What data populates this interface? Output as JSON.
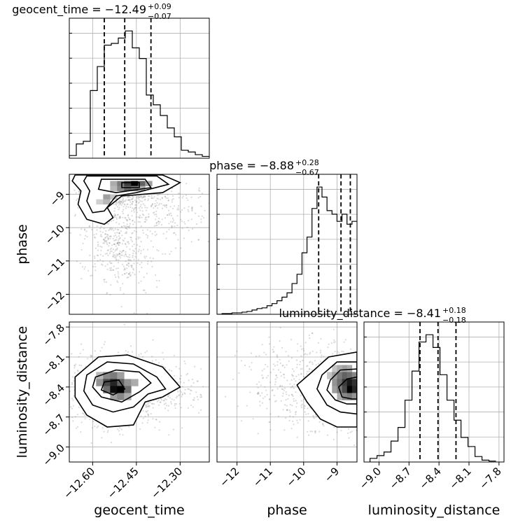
{
  "chart_data": {
    "type": "corner",
    "parameters": [
      {
        "key": "geocent_time",
        "axis_label": "geocent_time",
        "range": [
          -12.68,
          -12.2
        ],
        "ticks": [
          -12.6,
          -12.45,
          -12.3
        ],
        "tick_labels": [
          "−12.60",
          "−12.45",
          "−12.30"
        ],
        "title": {
          "text": "geocent_time = −12.49",
          "plus": "+0.09",
          "minus": "−0.07"
        },
        "quantiles": [
          -12.56,
          -12.49,
          -12.4
        ],
        "histogram": {
          "edges_start": -12.68,
          "bin_width": 0.024,
          "counts": [
            3,
            16,
            19,
            76,
            103,
            127,
            129,
            135,
            143,
            124,
            112,
            71,
            60,
            48,
            34,
            24,
            9,
            7,
            4,
            2
          ]
        }
      },
      {
        "key": "phase",
        "axis_label": "phase",
        "range": [
          -12.6,
          -8.4
        ],
        "ticks": [
          -12,
          -11,
          -10,
          -9
        ],
        "tick_labels": [
          "−12",
          "−11",
          "−10",
          "−9"
        ],
        "title": {
          "text": "phase = −8.88",
          "plus": "+0.28",
          "minus": "−0.67"
        },
        "quantiles": [
          -9.55,
          -8.88,
          -8.6
        ],
        "histogram": {
          "edges_start": -12.6,
          "bin_width": 0.15,
          "counts": [
            0,
            1,
            1,
            2,
            2,
            3,
            4,
            6,
            8,
            9,
            12,
            15,
            19,
            24,
            30,
            43,
            56,
            86,
            108,
            148,
            178,
            164,
            145,
            140,
            130,
            140,
            126,
            130
          ]
        }
      },
      {
        "key": "luminosity_distance",
        "axis_label": "luminosity_distance",
        "range": [
          -9.15,
          -7.75
        ],
        "ticks": [
          -9.0,
          -8.7,
          -8.4,
          -8.1,
          -7.8
        ],
        "tick_labels": [
          "−9.0",
          "−8.7",
          "−8.4",
          "−8.1",
          "−7.8"
        ],
        "title": {
          "text": "luminosity_distance = −8.41",
          "plus": "+0.18",
          "minus": "−0.18"
        },
        "quantiles": [
          -8.59,
          -8.41,
          -8.23
        ],
        "histogram": {
          "edges_start": -9.09,
          "bin_width": 0.07,
          "counts": [
            4,
            7,
            11,
            23,
            38,
            68,
            100,
            132,
            140,
            126,
            96,
            68,
            46,
            27,
            17,
            6,
            2,
            1
          ]
        }
      }
    ],
    "pairs": [
      {
        "x": "geocent_time",
        "y": "phase",
        "density_cells": [
          {
            "x": -12.54,
            "y": -8.75,
            "w": 0.024,
            "h": 0.15,
            "d": 0.3
          },
          {
            "x": -12.516,
            "y": -8.75,
            "w": 0.024,
            "h": 0.15,
            "d": 0.5
          },
          {
            "x": -12.492,
            "y": -8.75,
            "w": 0.024,
            "h": 0.15,
            "d": 0.75
          },
          {
            "x": -12.468,
            "y": -8.75,
            "w": 0.024,
            "h": 0.15,
            "d": 1.0
          },
          {
            "x": -12.444,
            "y": -8.75,
            "w": 0.024,
            "h": 0.15,
            "d": 0.6
          },
          {
            "x": -12.42,
            "y": -8.75,
            "w": 0.024,
            "h": 0.15,
            "d": 0.35
          },
          {
            "x": -12.54,
            "y": -8.9,
            "w": 0.024,
            "h": 0.15,
            "d": 0.25
          },
          {
            "x": -12.516,
            "y": -8.9,
            "w": 0.024,
            "h": 0.15,
            "d": 0.45
          },
          {
            "x": -12.492,
            "y": -8.9,
            "w": 0.024,
            "h": 0.15,
            "d": 0.6
          },
          {
            "x": -12.468,
            "y": -8.9,
            "w": 0.024,
            "h": 0.15,
            "d": 0.5
          },
          {
            "x": -12.444,
            "y": -8.9,
            "w": 0.024,
            "h": 0.15,
            "d": 0.3
          },
          {
            "x": -12.564,
            "y": -9.15,
            "w": 0.024,
            "h": 0.15,
            "d": 0.35
          },
          {
            "x": -12.54,
            "y": -9.15,
            "w": 0.024,
            "h": 0.15,
            "d": 0.2
          },
          {
            "x": -12.588,
            "y": -9.3,
            "w": 0.024,
            "h": 0.15,
            "d": 0.15
          },
          {
            "x": -12.564,
            "y": -9.3,
            "w": 0.024,
            "h": 0.15,
            "d": 0.25
          }
        ],
        "contours": [
          [
            [
              -12.66,
              -8.42
            ],
            [
              -12.36,
              -8.42
            ],
            [
              -12.3,
              -8.65
            ],
            [
              -12.36,
              -8.95
            ],
            [
              -12.5,
              -9.05
            ],
            [
              -12.55,
              -9.4
            ],
            [
              -12.53,
              -9.7
            ],
            [
              -12.56,
              -9.9
            ],
            [
              -12.62,
              -9.75
            ],
            [
              -12.65,
              -9.3
            ],
            [
              -12.64,
              -8.9
            ],
            [
              -12.67,
              -8.6
            ]
          ],
          [
            [
              -12.62,
              -8.45
            ],
            [
              -12.38,
              -8.45
            ],
            [
              -12.34,
              -8.7
            ],
            [
              -12.45,
              -8.95
            ],
            [
              -12.52,
              -9.05
            ],
            [
              -12.56,
              -9.5
            ],
            [
              -12.6,
              -9.55
            ],
            [
              -12.62,
              -9.2
            ],
            [
              -12.61,
              -8.9
            ],
            [
              -12.63,
              -8.6
            ]
          ],
          [
            [
              -12.57,
              -8.55
            ],
            [
              -12.42,
              -8.55
            ],
            [
              -12.4,
              -8.8
            ],
            [
              -12.52,
              -8.95
            ],
            [
              -12.58,
              -8.85
            ]
          ],
          [
            [
              -12.5,
              -8.65
            ],
            [
              -12.44,
              -8.65
            ],
            [
              -12.44,
              -8.8
            ],
            [
              -12.5,
              -8.8
            ]
          ]
        ]
      },
      {
        "x": "geocent_time",
        "y": "luminosity_distance",
        "density_cells": [
          {
            "x": -12.588,
            "y": -8.32,
            "w": 0.024,
            "h": 0.07,
            "d": 0.25
          },
          {
            "x": -12.564,
            "y": -8.32,
            "w": 0.024,
            "h": 0.07,
            "d": 0.45
          },
          {
            "x": -12.54,
            "y": -8.32,
            "w": 0.024,
            "h": 0.07,
            "d": 0.5
          },
          {
            "x": -12.516,
            "y": -8.32,
            "w": 0.024,
            "h": 0.07,
            "d": 0.35
          },
          {
            "x": -12.588,
            "y": -8.39,
            "w": 0.024,
            "h": 0.07,
            "d": 0.4
          },
          {
            "x": -12.564,
            "y": -8.39,
            "w": 0.024,
            "h": 0.07,
            "d": 0.7
          },
          {
            "x": -12.54,
            "y": -8.39,
            "w": 0.024,
            "h": 0.07,
            "d": 0.85
          },
          {
            "x": -12.516,
            "y": -8.39,
            "w": 0.024,
            "h": 0.07,
            "d": 0.6
          },
          {
            "x": -12.492,
            "y": -8.39,
            "w": 0.024,
            "h": 0.07,
            "d": 0.4
          },
          {
            "x": -12.564,
            "y": -8.46,
            "w": 0.024,
            "h": 0.07,
            "d": 0.55
          },
          {
            "x": -12.54,
            "y": -8.46,
            "w": 0.024,
            "h": 0.07,
            "d": 0.95
          },
          {
            "x": -12.516,
            "y": -8.46,
            "w": 0.024,
            "h": 0.07,
            "d": 1.0
          },
          {
            "x": -12.492,
            "y": -8.46,
            "w": 0.024,
            "h": 0.07,
            "d": 0.55
          },
          {
            "x": -12.468,
            "y": -8.39,
            "w": 0.024,
            "h": 0.07,
            "d": 0.3
          },
          {
            "x": -12.54,
            "y": -8.53,
            "w": 0.024,
            "h": 0.07,
            "d": 0.35
          },
          {
            "x": -12.516,
            "y": -8.53,
            "w": 0.024,
            "h": 0.07,
            "d": 0.45
          },
          {
            "x": -12.492,
            "y": -8.53,
            "w": 0.024,
            "h": 0.07,
            "d": 0.3
          }
        ],
        "contours": [
          [
            [
              -12.66,
              -8.3
            ],
            [
              -12.58,
              -8.1
            ],
            [
              -12.48,
              -8.08
            ],
            [
              -12.36,
              -8.2
            ],
            [
              -12.3,
              -8.4
            ],
            [
              -12.36,
              -8.5
            ],
            [
              -12.42,
              -8.55
            ],
            [
              -12.46,
              -8.78
            ],
            [
              -12.55,
              -8.8
            ],
            [
              -12.62,
              -8.68
            ],
            [
              -12.66,
              -8.5
            ]
          ],
          [
            [
              -12.62,
              -8.28
            ],
            [
              -12.55,
              -8.15
            ],
            [
              -12.46,
              -8.17
            ],
            [
              -12.38,
              -8.3
            ],
            [
              -12.35,
              -8.42
            ],
            [
              -12.41,
              -8.47
            ],
            [
              -12.46,
              -8.6
            ],
            [
              -12.53,
              -8.65
            ],
            [
              -12.6,
              -8.58
            ],
            [
              -12.63,
              -8.44
            ]
          ],
          [
            [
              -12.59,
              -8.3
            ],
            [
              -12.52,
              -8.23
            ],
            [
              -12.44,
              -8.25
            ],
            [
              -12.4,
              -8.36
            ],
            [
              -12.44,
              -8.45
            ],
            [
              -12.5,
              -8.55
            ],
            [
              -12.57,
              -8.5
            ],
            [
              -12.6,
              -8.4
            ]
          ],
          [
            [
              -12.56,
              -8.35
            ],
            [
              -12.51,
              -8.33
            ],
            [
              -12.49,
              -8.42
            ],
            [
              -12.53,
              -8.48
            ],
            [
              -12.57,
              -8.43
            ]
          ]
        ]
      },
      {
        "x": "phase",
        "y": "luminosity_distance",
        "density_cells": [
          {
            "x": -9.15,
            "y": -8.25,
            "w": 0.15,
            "h": 0.07,
            "d": 0.2
          },
          {
            "x": -9.0,
            "y": -8.25,
            "w": 0.15,
            "h": 0.07,
            "d": 0.3
          },
          {
            "x": -8.85,
            "y": -8.25,
            "w": 0.15,
            "h": 0.07,
            "d": 0.35
          },
          {
            "x": -8.7,
            "y": -8.25,
            "w": 0.15,
            "h": 0.07,
            "d": 0.3
          },
          {
            "x": -9.3,
            "y": -8.32,
            "w": 0.15,
            "h": 0.07,
            "d": 0.2
          },
          {
            "x": -9.15,
            "y": -8.32,
            "w": 0.15,
            "h": 0.07,
            "d": 0.35
          },
          {
            "x": -9.0,
            "y": -8.32,
            "w": 0.15,
            "h": 0.07,
            "d": 0.5
          },
          {
            "x": -8.85,
            "y": -8.32,
            "w": 0.15,
            "h": 0.07,
            "d": 0.6
          },
          {
            "x": -8.7,
            "y": -8.32,
            "w": 0.15,
            "h": 0.07,
            "d": 0.55
          },
          {
            "x": -8.55,
            "y": -8.32,
            "w": 0.15,
            "h": 0.07,
            "d": 0.45
          },
          {
            "x": -9.15,
            "y": -8.39,
            "w": 0.15,
            "h": 0.07,
            "d": 0.4
          },
          {
            "x": -9.0,
            "y": -8.39,
            "w": 0.15,
            "h": 0.07,
            "d": 0.55
          },
          {
            "x": -8.85,
            "y": -8.39,
            "w": 0.15,
            "h": 0.07,
            "d": 0.75
          },
          {
            "x": -8.7,
            "y": -8.39,
            "w": 0.15,
            "h": 0.07,
            "d": 0.9
          },
          {
            "x": -8.55,
            "y": -8.39,
            "w": 0.15,
            "h": 0.07,
            "d": 0.8
          },
          {
            "x": -9.15,
            "y": -8.46,
            "w": 0.15,
            "h": 0.07,
            "d": 0.35
          },
          {
            "x": -9.0,
            "y": -8.46,
            "w": 0.15,
            "h": 0.07,
            "d": 0.5
          },
          {
            "x": -8.85,
            "y": -8.46,
            "w": 0.15,
            "h": 0.07,
            "d": 0.7
          },
          {
            "x": -8.7,
            "y": -8.46,
            "w": 0.15,
            "h": 0.07,
            "d": 1.0
          },
          {
            "x": -8.55,
            "y": -8.46,
            "w": 0.15,
            "h": 0.07,
            "d": 0.85
          },
          {
            "x": -9.0,
            "y": -8.53,
            "w": 0.15,
            "h": 0.07,
            "d": 0.3
          },
          {
            "x": -8.85,
            "y": -8.53,
            "w": 0.15,
            "h": 0.07,
            "d": 0.45
          },
          {
            "x": -8.7,
            "y": -8.53,
            "w": 0.15,
            "h": 0.07,
            "d": 0.5
          },
          {
            "x": -8.55,
            "y": -8.53,
            "w": 0.15,
            "h": 0.07,
            "d": 0.4
          }
        ],
        "contours": [
          [
            [
              -8.4,
              -8.05
            ],
            [
              -9.25,
              -8.1
            ],
            [
              -9.75,
              -8.25
            ],
            [
              -10.2,
              -8.38
            ],
            [
              -9.9,
              -8.55
            ],
            [
              -9.5,
              -8.72
            ],
            [
              -9.0,
              -8.8
            ],
            [
              -8.4,
              -8.8
            ]
          ],
          [
            [
              -8.4,
              -8.15
            ],
            [
              -9.0,
              -8.15
            ],
            [
              -9.45,
              -8.28
            ],
            [
              -9.6,
              -8.42
            ],
            [
              -9.3,
              -8.58
            ],
            [
              -8.9,
              -8.65
            ],
            [
              -8.4,
              -8.67
            ]
          ],
          [
            [
              -8.4,
              -8.22
            ],
            [
              -8.9,
              -8.23
            ],
            [
              -9.2,
              -8.33
            ],
            [
              -9.3,
              -8.43
            ],
            [
              -9.05,
              -8.53
            ],
            [
              -8.7,
              -8.57
            ],
            [
              -8.4,
              -8.57
            ]
          ],
          [
            [
              -8.4,
              -8.3
            ],
            [
              -8.7,
              -8.32
            ],
            [
              -8.95,
              -8.4
            ],
            [
              -8.85,
              -8.5
            ],
            [
              -8.55,
              -8.52
            ],
            [
              -8.4,
              -8.52
            ]
          ]
        ]
      }
    ],
    "scatter_clouds": [
      {
        "pair": 0,
        "blobs": [
          {
            "cx": -12.5,
            "cy": -8.9,
            "sx": 0.07,
            "sy": 0.28,
            "n": 650
          },
          {
            "cx": -12.53,
            "cy": -10.3,
            "sx": 0.05,
            "sy": 0.6,
            "n": 320
          },
          {
            "cx": -12.35,
            "cy": -9.6,
            "sx": 0.1,
            "sy": 0.5,
            "n": 260
          },
          {
            "cx": -12.48,
            "cy": -11.2,
            "sx": 0.06,
            "sy": 0.55,
            "n": 110
          }
        ]
      },
      {
        "pair": 1,
        "blobs": [
          {
            "cx": -12.52,
            "cy": -8.42,
            "sx": 0.08,
            "sy": 0.18,
            "n": 1000
          },
          {
            "cx": -12.38,
            "cy": -8.4,
            "sx": 0.09,
            "sy": 0.14,
            "n": 250
          }
        ]
      },
      {
        "pair": 2,
        "blobs": [
          {
            "cx": -8.85,
            "cy": -8.42,
            "sx": 0.6,
            "sy": 0.18,
            "n": 900
          },
          {
            "cx": -10.3,
            "cy": -8.35,
            "sx": 0.8,
            "sy": 0.22,
            "n": 260
          }
        ]
      }
    ]
  }
}
